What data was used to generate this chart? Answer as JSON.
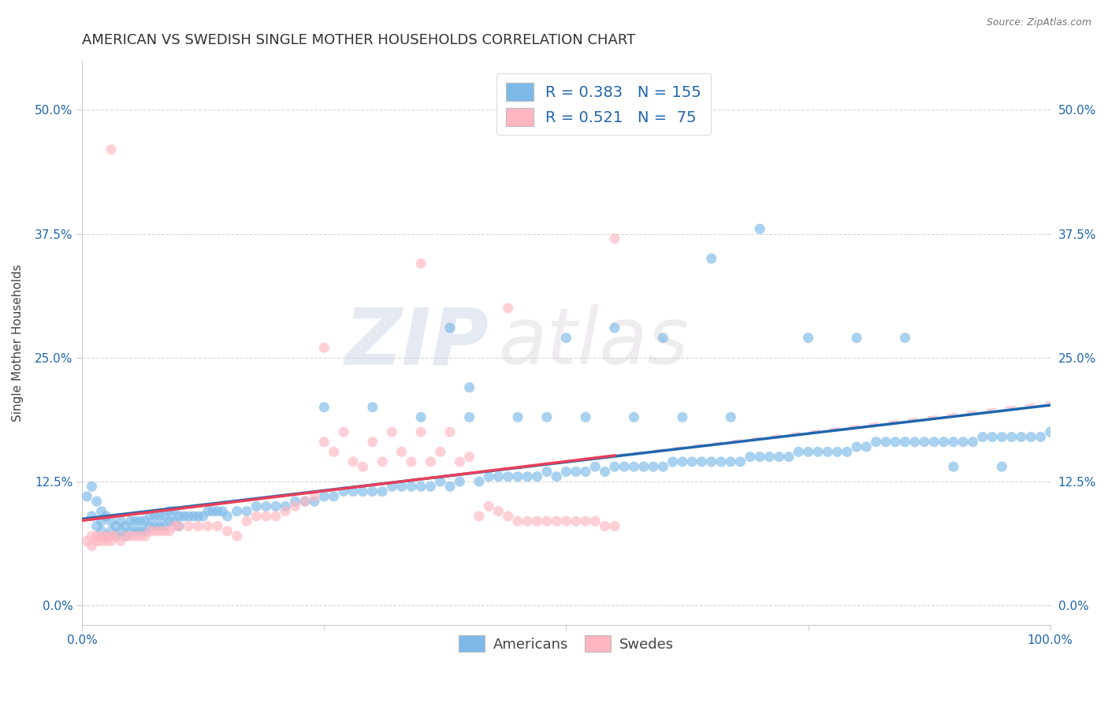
{
  "title": "AMERICAN VS SWEDISH SINGLE MOTHER HOUSEHOLDS CORRELATION CHART",
  "source": "Source: ZipAtlas.com",
  "ylabel": "Single Mother Households",
  "xlim": [
    0.0,
    1.0
  ],
  "ylim": [
    -0.02,
    0.55
  ],
  "yticks": [
    0.0,
    0.125,
    0.25,
    0.375,
    0.5
  ],
  "ytick_labels": [
    "0.0%",
    "12.5%",
    "25.0%",
    "37.5%",
    "50.0%"
  ],
  "xtick_labels": [
    "0.0%",
    "100.0%"
  ],
  "blue_color": "#7cb9e8",
  "pink_color": "#ffb6c1",
  "blue_line_color": "#2166ac",
  "pink_line_color": "#e8405a",
  "R_blue": "0.383",
  "N_blue": "155",
  "R_pink": "0.521",
  "N_pink": " 75",
  "legend_label_blue": "Americans",
  "legend_label_pink": "Swedes",
  "background_color": "#ffffff",
  "grid_color": "#cccccc",
  "title_fontsize": 13,
  "axis_label_fontsize": 11,
  "tick_label_fontsize": 11,
  "watermark_zip": "ZIP",
  "watermark_atlas": "atlas",
  "blue_x": [
    0.005,
    0.01,
    0.01,
    0.015,
    0.015,
    0.02,
    0.02,
    0.02,
    0.025,
    0.025,
    0.03,
    0.03,
    0.035,
    0.035,
    0.04,
    0.04,
    0.045,
    0.045,
    0.05,
    0.05,
    0.055,
    0.055,
    0.06,
    0.06,
    0.065,
    0.065,
    0.07,
    0.07,
    0.075,
    0.075,
    0.08,
    0.08,
    0.085,
    0.085,
    0.09,
    0.09,
    0.095,
    0.095,
    0.1,
    0.1,
    0.105,
    0.11,
    0.115,
    0.12,
    0.125,
    0.13,
    0.135,
    0.14,
    0.145,
    0.15,
    0.16,
    0.17,
    0.18,
    0.19,
    0.2,
    0.21,
    0.22,
    0.23,
    0.24,
    0.25,
    0.26,
    0.27,
    0.28,
    0.29,
    0.3,
    0.31,
    0.32,
    0.33,
    0.34,
    0.35,
    0.36,
    0.37,
    0.38,
    0.39,
    0.4,
    0.41,
    0.42,
    0.43,
    0.44,
    0.45,
    0.46,
    0.47,
    0.48,
    0.49,
    0.5,
    0.51,
    0.52,
    0.53,
    0.54,
    0.55,
    0.56,
    0.57,
    0.58,
    0.59,
    0.6,
    0.61,
    0.62,
    0.63,
    0.64,
    0.65,
    0.66,
    0.67,
    0.68,
    0.69,
    0.7,
    0.71,
    0.72,
    0.73,
    0.74,
    0.75,
    0.76,
    0.77,
    0.78,
    0.79,
    0.8,
    0.81,
    0.82,
    0.83,
    0.84,
    0.85,
    0.86,
    0.87,
    0.88,
    0.89,
    0.9,
    0.91,
    0.92,
    0.93,
    0.94,
    0.95,
    0.96,
    0.97,
    0.98,
    0.99,
    1.0,
    0.38,
    0.5,
    0.55,
    0.6,
    0.65,
    0.7,
    0.75,
    0.8,
    0.85,
    0.9,
    0.95,
    0.25,
    0.3,
    0.35,
    0.4,
    0.45,
    0.48,
    0.52,
    0.57,
    0.62,
    0.67
  ],
  "blue_y": [
    0.11,
    0.12,
    0.09,
    0.105,
    0.08,
    0.095,
    0.085,
    0.075,
    0.09,
    0.07,
    0.085,
    0.075,
    0.08,
    0.07,
    0.085,
    0.075,
    0.08,
    0.07,
    0.085,
    0.075,
    0.085,
    0.075,
    0.085,
    0.075,
    0.085,
    0.075,
    0.09,
    0.08,
    0.09,
    0.08,
    0.09,
    0.08,
    0.09,
    0.08,
    0.095,
    0.085,
    0.095,
    0.085,
    0.09,
    0.08,
    0.09,
    0.09,
    0.09,
    0.09,
    0.09,
    0.095,
    0.095,
    0.095,
    0.095,
    0.09,
    0.095,
    0.095,
    0.1,
    0.1,
    0.1,
    0.1,
    0.105,
    0.105,
    0.105,
    0.11,
    0.11,
    0.115,
    0.115,
    0.115,
    0.115,
    0.115,
    0.12,
    0.12,
    0.12,
    0.12,
    0.12,
    0.125,
    0.12,
    0.125,
    0.22,
    0.125,
    0.13,
    0.13,
    0.13,
    0.13,
    0.13,
    0.13,
    0.135,
    0.13,
    0.135,
    0.135,
    0.135,
    0.14,
    0.135,
    0.14,
    0.14,
    0.14,
    0.14,
    0.14,
    0.14,
    0.145,
    0.145,
    0.145,
    0.145,
    0.145,
    0.145,
    0.145,
    0.145,
    0.15,
    0.15,
    0.15,
    0.15,
    0.15,
    0.155,
    0.155,
    0.155,
    0.155,
    0.155,
    0.155,
    0.16,
    0.16,
    0.165,
    0.165,
    0.165,
    0.165,
    0.165,
    0.165,
    0.165,
    0.165,
    0.165,
    0.165,
    0.165,
    0.17,
    0.17,
    0.17,
    0.17,
    0.17,
    0.17,
    0.17,
    0.175,
    0.28,
    0.27,
    0.28,
    0.27,
    0.35,
    0.38,
    0.27,
    0.27,
    0.27,
    0.14,
    0.14,
    0.2,
    0.2,
    0.19,
    0.19,
    0.19,
    0.19,
    0.19,
    0.19,
    0.19,
    0.19
  ],
  "pink_x": [
    0.005,
    0.01,
    0.01,
    0.015,
    0.015,
    0.02,
    0.02,
    0.025,
    0.025,
    0.03,
    0.03,
    0.035,
    0.04,
    0.045,
    0.05,
    0.055,
    0.06,
    0.065,
    0.07,
    0.075,
    0.08,
    0.085,
    0.09,
    0.095,
    0.1,
    0.11,
    0.12,
    0.13,
    0.14,
    0.15,
    0.16,
    0.17,
    0.18,
    0.19,
    0.2,
    0.21,
    0.22,
    0.23,
    0.24,
    0.25,
    0.26,
    0.27,
    0.28,
    0.29,
    0.3,
    0.31,
    0.32,
    0.33,
    0.34,
    0.35,
    0.36,
    0.37,
    0.38,
    0.39,
    0.4,
    0.41,
    0.42,
    0.43,
    0.44,
    0.45,
    0.46,
    0.47,
    0.48,
    0.49,
    0.5,
    0.51,
    0.52,
    0.53,
    0.54,
    0.55,
    0.25,
    0.35,
    0.03,
    0.55,
    0.44
  ],
  "pink_y": [
    0.065,
    0.07,
    0.06,
    0.07,
    0.065,
    0.07,
    0.065,
    0.07,
    0.065,
    0.07,
    0.065,
    0.07,
    0.065,
    0.07,
    0.07,
    0.07,
    0.07,
    0.07,
    0.075,
    0.075,
    0.075,
    0.075,
    0.075,
    0.08,
    0.08,
    0.08,
    0.08,
    0.08,
    0.08,
    0.075,
    0.07,
    0.085,
    0.09,
    0.09,
    0.09,
    0.095,
    0.1,
    0.105,
    0.11,
    0.165,
    0.155,
    0.175,
    0.145,
    0.14,
    0.165,
    0.145,
    0.175,
    0.155,
    0.145,
    0.175,
    0.145,
    0.155,
    0.175,
    0.145,
    0.15,
    0.09,
    0.1,
    0.095,
    0.09,
    0.085,
    0.085,
    0.085,
    0.085,
    0.085,
    0.085,
    0.085,
    0.085,
    0.085,
    0.08,
    0.08,
    0.26,
    0.345,
    0.46,
    0.37,
    0.3
  ]
}
